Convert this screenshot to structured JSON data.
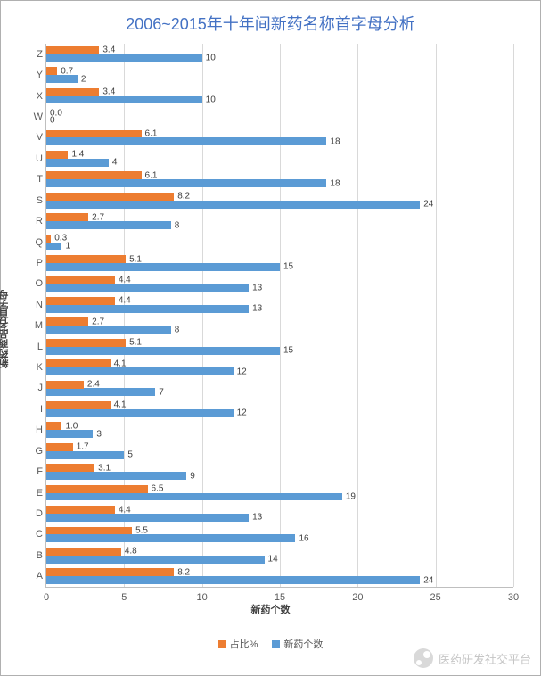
{
  "chart": {
    "title": "2006~2015年十年间新药名称首字母分析",
    "title_color": "#4472c4",
    "title_fontsize": 18,
    "type": "horizontal_grouped_bar",
    "y_axis_title": "新药商品名首字母",
    "x_axis_title": "新药个数",
    "x_range": [
      0,
      30
    ],
    "x_ticks": [
      0,
      5,
      10,
      15,
      20,
      25,
      30
    ],
    "grid_color": "#d9d9d9",
    "axis_color": "#bfbfbf",
    "background_color": "#ffffff",
    "label_fontsize": 11,
    "series": [
      {
        "key": "pct",
        "label": "占比%",
        "color": "#ed7d31"
      },
      {
        "key": "count",
        "label": "新药个数",
        "color": "#5b9bd5"
      }
    ],
    "categories": [
      "A",
      "B",
      "C",
      "D",
      "E",
      "F",
      "G",
      "H",
      "I",
      "J",
      "K",
      "L",
      "M",
      "N",
      "O",
      "P",
      "Q",
      "R",
      "S",
      "T",
      "U",
      "V",
      "W",
      "X",
      "Y",
      "Z"
    ],
    "data": {
      "A": {
        "count": 24,
        "pct": 8.2
      },
      "B": {
        "count": 14,
        "pct": 4.8
      },
      "C": {
        "count": 16,
        "pct": 5.5
      },
      "D": {
        "count": 13,
        "pct": 4.4
      },
      "E": {
        "count": 19,
        "pct": 6.5
      },
      "F": {
        "count": 9,
        "pct": 3.1
      },
      "G": {
        "count": 5,
        "pct": 1.7
      },
      "H": {
        "count": 3,
        "pct": 1.0
      },
      "I": {
        "count": 12,
        "pct": 4.1
      },
      "J": {
        "count": 7,
        "pct": 2.4
      },
      "K": {
        "count": 12,
        "pct": 4.1
      },
      "L": {
        "count": 15,
        "pct": 5.1
      },
      "M": {
        "count": 8,
        "pct": 2.7
      },
      "N": {
        "count": 13,
        "pct": 4.4
      },
      "O": {
        "count": 13,
        "pct": 4.4
      },
      "P": {
        "count": 15,
        "pct": 5.1
      },
      "Q": {
        "count": 1,
        "pct": 0.3
      },
      "R": {
        "count": 8,
        "pct": 2.7
      },
      "S": {
        "count": 24,
        "pct": 8.2
      },
      "T": {
        "count": 18,
        "pct": 6.1
      },
      "U": {
        "count": 4,
        "pct": 1.4
      },
      "V": {
        "count": 18,
        "pct": 6.1
      },
      "W": {
        "count": 0,
        "pct": 0.0
      },
      "X": {
        "count": 10,
        "pct": 3.4
      },
      "Y": {
        "count": 2,
        "pct": 0.7
      },
      "Z": {
        "count": 10,
        "pct": 3.4
      }
    }
  },
  "watermark": {
    "text": "医药研发社交平台",
    "icon_name": "wechat-icon"
  }
}
